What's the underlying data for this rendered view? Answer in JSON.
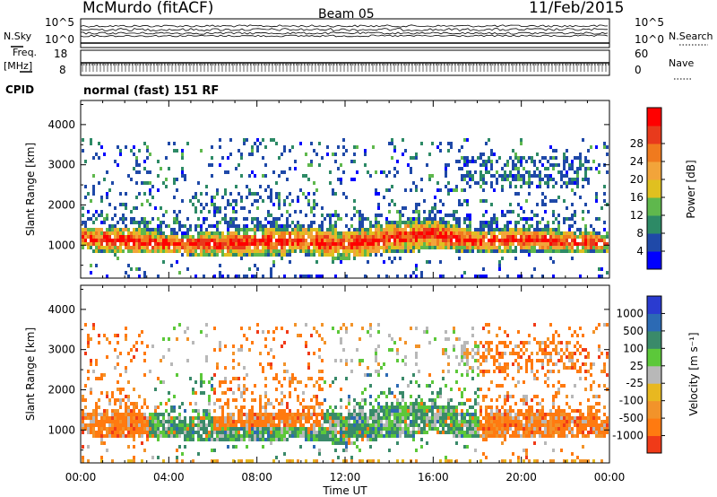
{
  "header": {
    "title": "McMurdo (fitACF)",
    "beam": "Beam 05",
    "date": "11/Feb/2015"
  },
  "top_panel": {
    "left_label": "N.Sky",
    "right_label": "N.Search",
    "left_ticks": [
      "10^5",
      "10^0"
    ],
    "right_ticks": [
      "10^5",
      "10^0"
    ]
  },
  "freq_panel": {
    "left_label_1": "Freq.",
    "left_label_2": "[MHz]",
    "left_ticks": [
      "18",
      "8"
    ],
    "right_ticks": [
      "60",
      "0"
    ],
    "right_label": "Nave",
    "cpid_label": "CPID",
    "cpid_value": "normal (fast) 151 RF"
  },
  "chart_data": [
    {
      "type": "heatmap",
      "name": "power-panel",
      "ylabel": "Slant Range [km]",
      "xlabel": "",
      "yticks": [
        "1000",
        "2000",
        "3000",
        "4000"
      ],
      "ylim": [
        180,
        4600
      ],
      "xlim": [
        0,
        24
      ],
      "colorbar_label": "Power [dB]",
      "colorbar_ticks": [
        "4",
        "8",
        "12",
        "16",
        "20",
        "24",
        "28"
      ],
      "colorbar_colors": [
        "#0000ff",
        "#1f49a8",
        "#2d8a66",
        "#5fb84d",
        "#e0c020",
        "#f2a43a",
        "#f07a1e",
        "#e83a1c",
        "#ff0000"
      ],
      "echo_band_km": [
        [
          0,
          900,
          1500
        ],
        [
          2,
          800,
          1500
        ],
        [
          4,
          800,
          1300
        ],
        [
          6,
          750,
          1350
        ],
        [
          8,
          750,
          1500
        ],
        [
          10,
          800,
          1500
        ],
        [
          12,
          650,
          1400
        ],
        [
          14,
          850,
          1600
        ],
        [
          16,
          900,
          1700
        ],
        [
          18,
          850,
          1400
        ],
        [
          20,
          850,
          1500
        ],
        [
          22,
          850,
          1400
        ],
        [
          24,
          850,
          1300
        ]
      ]
    },
    {
      "type": "heatmap",
      "name": "velocity-panel",
      "ylabel": "Slant Range [km]",
      "xlabel": "Time UT",
      "yticks": [
        "1000",
        "2000",
        "3000",
        "4000"
      ],
      "ylim": [
        180,
        4600
      ],
      "xlim": [
        0,
        24
      ],
      "xticks": [
        "00:00",
        "04:00",
        "08:00",
        "12:00",
        "16:00",
        "20:00",
        "00:00"
      ],
      "colorbar_label": "Velocity [m s⁻¹]",
      "colorbar_ticks": [
        "1000",
        "500",
        "100",
        "25",
        "-25",
        "-100",
        "-500",
        "-1000"
      ],
      "colorbar_colors": [
        "#2a3bd0",
        "#2c6ab4",
        "#3a8a6a",
        "#5cc83a",
        "#b8b8b8",
        "#e8b820",
        "#f2932a",
        "#ff7a10",
        "#f03a18"
      ]
    }
  ]
}
